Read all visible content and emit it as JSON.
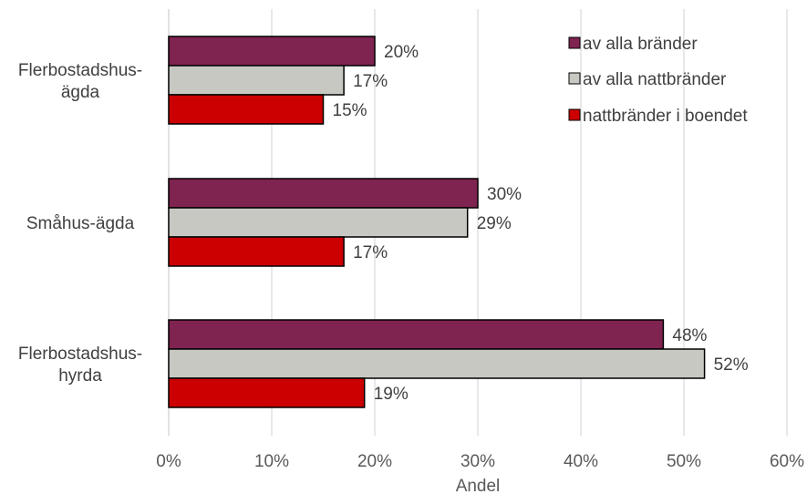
{
  "chart_data": {
    "type": "bar",
    "orientation": "horizontal",
    "categories": [
      [
        "Flerbostadshus-",
        "ägda"
      ],
      [
        "Småhus-ägda"
      ],
      [
        "Flerbostadshus-",
        "hyrda"
      ]
    ],
    "series": [
      {
        "name": "av alla bränder",
        "color": "#7f2350",
        "values": [
          20,
          30,
          48
        ],
        "labels": [
          "20%",
          "30%",
          "48%"
        ]
      },
      {
        "name": "av alla nattbränder",
        "color": "#c8c8c3",
        "values": [
          17,
          29,
          52
        ],
        "labels": [
          "17%",
          "29%",
          "52%"
        ]
      },
      {
        "name": "nattbränder i boendet",
        "color": "#cc0000",
        "values": [
          15,
          17,
          19
        ],
        "labels": [
          "15%",
          "17%",
          "19%"
        ]
      }
    ],
    "xlim": [
      0,
      60
    ],
    "xticks": [
      0,
      10,
      20,
      30,
      40,
      50,
      60
    ],
    "xtick_labels": [
      "0%",
      "10%",
      "20%",
      "30%",
      "40%",
      "50%",
      "60%"
    ],
    "xlabel": "Andel",
    "ylabel": "",
    "grid": "vertical",
    "legend_position": "top-right",
    "bar_edge_color": "#000000",
    "grid_color": "#d9d9d9"
  }
}
